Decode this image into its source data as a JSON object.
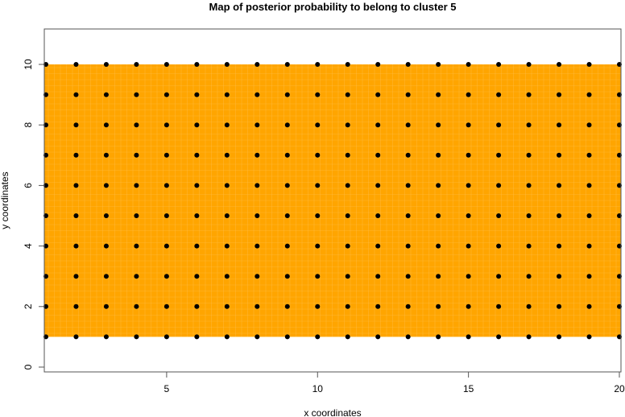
{
  "chart_data": {
    "type": "heatmap",
    "title": "Map of posterior probability to belong to cluster  5",
    "xlabel": "x coordinates",
    "ylabel": "y coordinates",
    "xlim": [
      1,
      20
    ],
    "ylim": [
      0,
      11
    ],
    "x_ticks": [
      5,
      10,
      15,
      20
    ],
    "y_ticks": [
      0,
      2,
      4,
      6,
      8,
      10
    ],
    "grid": false,
    "fill_color": "#FFA500",
    "fill_region": {
      "x": [
        1,
        20
      ],
      "y": [
        1,
        10
      ]
    },
    "points": {
      "x": [
        1,
        2,
        3,
        4,
        5,
        6,
        7,
        8,
        9,
        10,
        11,
        12,
        13,
        14,
        15,
        16,
        17,
        18,
        19,
        20
      ],
      "y": [
        1,
        2,
        3,
        4,
        5,
        6,
        7,
        8,
        9,
        10
      ],
      "color": "#000000"
    }
  }
}
